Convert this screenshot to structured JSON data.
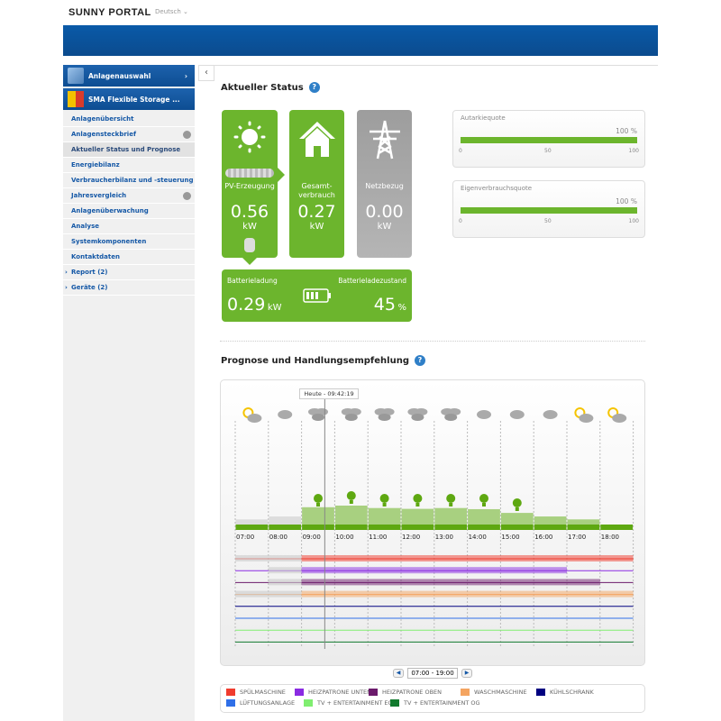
{
  "header": {
    "logo": "SUNNY PORTAL",
    "language": "Deutsch"
  },
  "sidebar": {
    "plant_select": "Anlagenauswahl",
    "plant_name": "SMA Flexible Storage ...",
    "items": [
      {
        "label": "Anlagenübersicht"
      },
      {
        "label": "Anlagensteckbrief",
        "globe": true
      },
      {
        "label": "Aktueller Status und Prognose",
        "active": true
      },
      {
        "label": "Energiebilanz"
      },
      {
        "label": "Verbraucherbilanz und -steuerung"
      },
      {
        "label": "Jahresvergleich",
        "globe": true
      },
      {
        "label": "Anlagenüberwachung"
      },
      {
        "label": "Analyse"
      },
      {
        "label": "Systemkomponenten"
      },
      {
        "label": "Kontaktdaten"
      },
      {
        "label": "Report (2)",
        "expandable": true
      },
      {
        "label": "Geräte (2)",
        "expandable": true
      }
    ]
  },
  "status": {
    "title": "Aktueller Status",
    "pv": {
      "label": "PV-Erzeugung",
      "value": "0.56",
      "unit": "kW"
    },
    "consumption": {
      "label1": "Gesamt-",
      "label2": "verbrauch",
      "value": "0.27",
      "unit": "kW"
    },
    "grid": {
      "label": "Netzbezug",
      "value": "0.00",
      "unit": "kW"
    },
    "battery": {
      "charge_label": "Batterieladung",
      "charge_value": "0.29",
      "charge_unit": "kW",
      "soc_label": "Batterieladezustand",
      "soc_value": "45",
      "soc_unit": "%"
    },
    "quotas": [
      {
        "label": "Autarkiequote",
        "value": 100,
        "value_text": "100",
        "unit": "%"
      },
      {
        "label": "Eigenverbrauchsquote",
        "value": 100,
        "value_text": "100",
        "unit": "%"
      }
    ],
    "scale": [
      "0",
      "50",
      "100"
    ]
  },
  "forecast": {
    "title": "Prognose und Handlungsempfehlung",
    "now_label": "Heute - 09:42:19",
    "now_hour": 9.7,
    "hours": [
      "07:00",
      "08:00",
      "09:00",
      "10:00",
      "11:00",
      "12:00",
      "13:00",
      "14:00",
      "15:00",
      "16:00",
      "17:00",
      "18:00"
    ],
    "weather": [
      "sun-cloud",
      "cloud",
      "clouds",
      "clouds",
      "clouds",
      "clouds",
      "clouds",
      "cloud",
      "cloud",
      "cloud",
      "sun-cloud",
      "sun-cloud"
    ],
    "pv_forecast_relative": [
      0.15,
      0.33,
      0.9,
      1.0,
      0.85,
      0.8,
      0.85,
      0.78,
      0.55,
      0.33,
      0.15,
      0
    ],
    "recommended": [
      false,
      false,
      true,
      true,
      true,
      true,
      true,
      true,
      true,
      false,
      false,
      false
    ],
    "range": "07:00 - 19:00",
    "consumers": [
      {
        "name": "SPÜLMASCHINE",
        "color": "#f03c2e",
        "past": [
          7,
          9
        ],
        "planned": [
          9,
          19
        ]
      },
      {
        "name": "HEIZPATRONE UNTEN",
        "color": "#8a2be2",
        "past": [
          8,
          9
        ],
        "planned": [
          9,
          17
        ]
      },
      {
        "name": "HEIZPATRONE OBEN",
        "color": "#6b1a6b",
        "past": [
          8,
          9
        ],
        "planned": [
          9,
          18
        ]
      },
      {
        "name": "WASCHMASCHINE",
        "color": "#f4a460",
        "past": [
          7,
          9
        ],
        "planned": [
          9,
          19
        ]
      },
      {
        "name": "KÜHLSCHRANK",
        "color": "#000080",
        "past": null,
        "planned": null
      },
      {
        "name": "LÜFTUNGSANLAGE",
        "color": "#2f6fe8",
        "past": null,
        "planned": null
      },
      {
        "name": "TV + ENTERTAINMENT EG",
        "color": "#80ee70",
        "past": null,
        "planned": null
      },
      {
        "name": "TV + ENTERTAINMENT OG",
        "color": "#117a2e",
        "past": null,
        "planned": null
      }
    ]
  },
  "colors": {
    "green": "#6cb52d",
    "blue": "#0b4b8e"
  }
}
